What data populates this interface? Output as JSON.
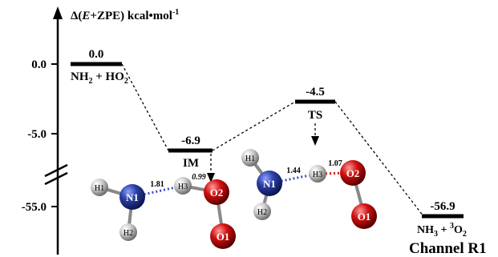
{
  "y_axis": {
    "label_open": "Δ(",
    "label_var": "E",
    "label_rest": "+ZPE) kcal•mol",
    "label_sup": "-1",
    "ticks": [
      "0.0",
      "-5.0",
      "-55.0"
    ]
  },
  "levels": [
    {
      "id": "reactants",
      "energy": "0.0",
      "species_main": "NH",
      "species_sub": "2",
      "species_rest": " + HO",
      "species_sub2": "2"
    },
    {
      "id": "im",
      "energy": "-6.9",
      "species": "IM"
    },
    {
      "id": "ts",
      "energy": "-4.5",
      "species": "TS"
    },
    {
      "id": "products",
      "energy": "-56.9",
      "species_main": "NH",
      "species_sub": "3",
      "species_rest": " + ",
      "species_sup": "3",
      "species_end": "O",
      "species_sub2": "2"
    }
  ],
  "channel_label": "Channel  R1",
  "im_structure": {
    "atoms": {
      "n1": "N1",
      "h1": "H1",
      "h2": "H2",
      "h3": "H3",
      "o1": "O1",
      "o2": "O2"
    },
    "bond_n1_h3": "1.81",
    "bond_h3_o2": "0.99"
  },
  "ts_structure": {
    "atoms": {
      "n1": "N1",
      "h1": "H1",
      "h2": "H2",
      "h3": "H3",
      "o1": "O1",
      "o2": "O2"
    },
    "bond_n1_h3": "1.44",
    "bond_h3_o2": "1.07"
  },
  "colors": {
    "nitrogen": "#2b3fa6",
    "oxygen": "#d01010",
    "hydrogen": "#bfbfbf",
    "hbond": "#3b4fb8"
  }
}
